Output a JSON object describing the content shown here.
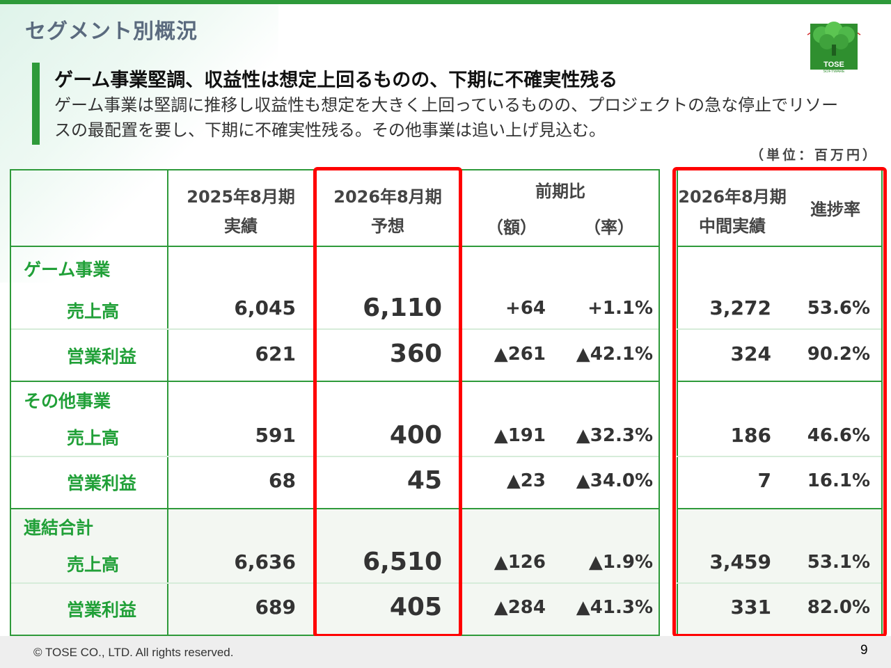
{
  "page_title": "セグメント別概況",
  "logo_text": "TOSE",
  "logo_subtext": "SOFTWARE",
  "headline": "ゲーム事業堅調、収益性は想定上回るものの、下期に不確実性残る",
  "description": "ゲーム事業は堅調に推移し収益性も想定を大きく上回っているものの、プロジェクトの急な停止でリソースの最配置を要し、下期に不確実性残る。その他事業は追い上げ見込む。",
  "unit": "（単位：百万円）",
  "headers": {
    "fy2025_line1": "2025年8月期",
    "fy2025_line2": "実績",
    "fy2026_line1": "2026年8月期",
    "fy2026_line2": "予想",
    "yoy_title": "前期比",
    "yoy_amount": "（額）",
    "yoy_rate": "（率）",
    "interim_line1": "2026年8月期",
    "interim_line2": "中間実績",
    "progress": "進捗率"
  },
  "segments": [
    {
      "name": "ゲーム事業",
      "rows": [
        {
          "label": "売上高",
          "fy2025": "6,045",
          "fy2026": "6,110",
          "yoy_amount": "+64",
          "yoy_rate": "+1.1%",
          "interim": "3,272",
          "progress": "53.6%"
        },
        {
          "label": "営業利益",
          "fy2025": "621",
          "fy2026": "360",
          "yoy_amount": "▲261",
          "yoy_rate": "▲42.1%",
          "interim": "324",
          "progress": "90.2%"
        }
      ]
    },
    {
      "name": "その他事業",
      "rows": [
        {
          "label": "売上高",
          "fy2025": "591",
          "fy2026": "400",
          "yoy_amount": "▲191",
          "yoy_rate": "▲32.3%",
          "interim": "186",
          "progress": "46.6%"
        },
        {
          "label": "営業利益",
          "fy2025": "68",
          "fy2026": "45",
          "yoy_amount": "▲23",
          "yoy_rate": "▲34.0%",
          "interim": "7",
          "progress": "16.1%"
        }
      ]
    },
    {
      "name": "連結合計",
      "rows": [
        {
          "label": "売上高",
          "fy2025": "6,636",
          "fy2026": "6,510",
          "yoy_amount": "▲126",
          "yoy_rate": "▲1.9%",
          "interim": "3,459",
          "progress": "53.1%"
        },
        {
          "label": "営業利益",
          "fy2025": "689",
          "fy2026": "405",
          "yoy_amount": "▲284",
          "yoy_rate": "▲41.3%",
          "interim": "331",
          "progress": "82.0%"
        }
      ]
    }
  ],
  "footer": {
    "copyright": "© TOSE CO., LTD. All rights reserved.",
    "page_number": "9"
  },
  "colors": {
    "brand_green": "#2e9a3a",
    "label_green": "#21a038",
    "highlight_red": "#ff0000"
  }
}
